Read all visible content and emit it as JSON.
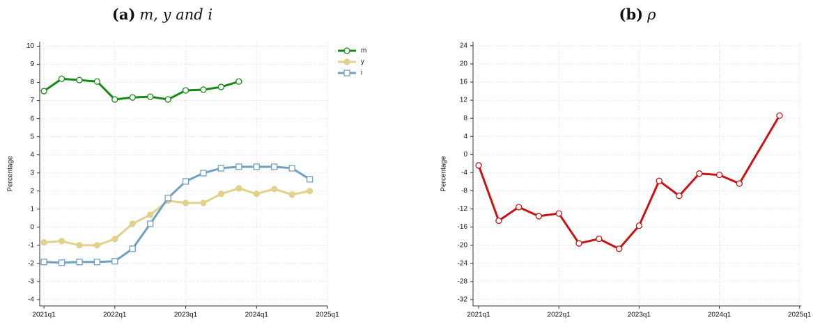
{
  "chart_data": [
    {
      "type": "line",
      "label": "(a)",
      "title": "m, y and i",
      "ylabel": "Percentage",
      "x": [
        2021,
        2021.25,
        2021.5,
        2021.75,
        2022,
        2022.25,
        2022.5,
        2022.75,
        2023,
        2023.25,
        2023.5,
        2023.75,
        2024,
        2024.25,
        2024.5,
        2024.75
      ],
      "series": [
        {
          "name": "m",
          "color": "#138a13",
          "marker": "circle-open",
          "values": [
            7.52,
            8.2,
            8.13,
            8.05,
            7.06,
            7.17,
            7.21,
            7.06,
            7.56,
            7.6,
            7.75,
            8.05,
            null,
            null,
            null,
            null
          ]
        },
        {
          "name": "y",
          "color": "#e2d18a",
          "marker": "circle-filled",
          "values": [
            -0.84,
            -0.77,
            -1.0,
            -1.0,
            -0.65,
            0.19,
            0.69,
            1.46,
            1.34,
            1.34,
            1.84,
            2.15,
            1.84,
            2.11,
            1.8,
            2.0
          ]
        },
        {
          "name": "i",
          "color": "#6f9fc3",
          "marker": "square-open",
          "values": [
            -1.92,
            -1.96,
            -1.92,
            -1.92,
            -1.88,
            -1.19,
            0.19,
            1.61,
            2.53,
            2.99,
            3.26,
            3.34,
            3.34,
            3.34,
            3.26,
            2.65
          ]
        }
      ],
      "xlim": [
        2020.94,
        2025.0
      ],
      "xticks": [
        {
          "value": 2021,
          "label": "2021q1"
        },
        {
          "value": 2022,
          "label": "2022q1"
        },
        {
          "value": 2023,
          "label": "2023q1"
        },
        {
          "value": 2024,
          "label": "2024q1"
        },
        {
          "value": 2025,
          "label": "2025q1"
        }
      ],
      "ylim": [
        -4.35,
        10.25
      ],
      "yticks": [
        -4,
        -3,
        -2,
        -1,
        0,
        1,
        2,
        3,
        4,
        5,
        6,
        7,
        8,
        9,
        10
      ],
      "grid": true,
      "legend": "top right"
    },
    {
      "type": "line",
      "label": "(b)",
      "title": "ρ",
      "ylabel": "Percentage",
      "x": [
        2021,
        2021.25,
        2021.5,
        2021.75,
        2022,
        2022.25,
        2022.5,
        2022.75,
        2023,
        2023.25,
        2023.5,
        2023.75,
        2024,
        2024.25,
        2024.75
      ],
      "series": [
        {
          "color": "#cc1111",
          "marker": "circle-open",
          "values": [
            -2.4,
            -14.6,
            -11.6,
            -13.6,
            -13.0,
            -19.6,
            -18.6,
            -20.8,
            -15.7,
            -5.8,
            -9.1,
            -4.2,
            -4.5,
            -6.4,
            8.6
          ]
        }
      ],
      "xlim": [
        2020.93,
        2025.02
      ],
      "xticks": [
        {
          "value": 2021,
          "label": "2021q1"
        },
        {
          "value": 2022,
          "label": "2022q1"
        },
        {
          "value": 2023,
          "label": "2023q1"
        },
        {
          "value": 2024,
          "label": "2024q1"
        },
        {
          "value": 2025,
          "label": "2025q1"
        }
      ],
      "ylim": [
        -33.4,
        24.9
      ],
      "yticks": [
        -32,
        -28,
        -24,
        -20,
        -16,
        -12,
        -8,
        -4,
        0,
        4,
        8,
        12,
        16,
        20,
        24
      ],
      "grid": true
    }
  ]
}
